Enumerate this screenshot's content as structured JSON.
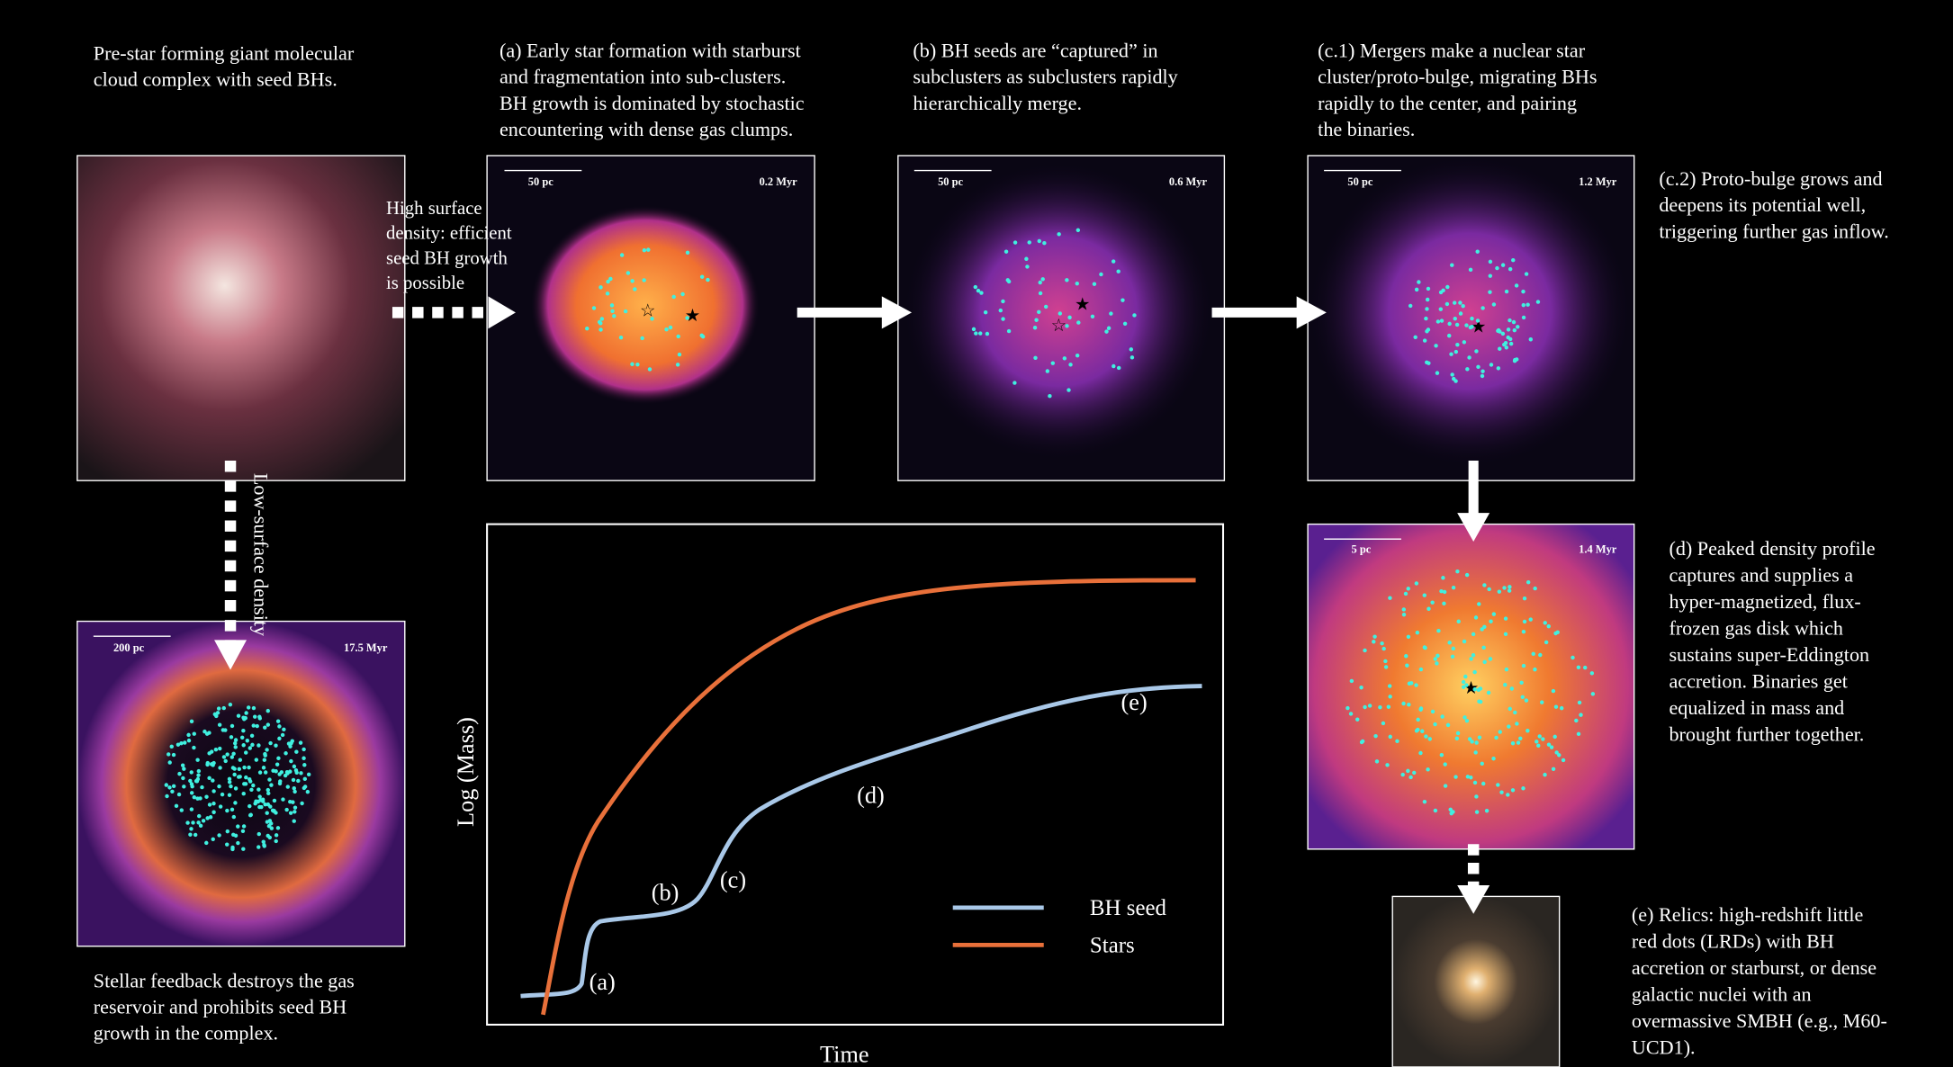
{
  "captions": {
    "initial": [
      "Pre-star forming giant molecular",
      "cloud complex with seed BHs."
    ],
    "a": [
      "(a) Early star formation with starburst",
      "and fragmentation into sub-clusters.",
      "BH growth is dominated by stochastic",
      "encountering with dense gas clumps."
    ],
    "b": [
      "(b) BH seeds are “captured” in",
      "subclusters as subclusters rapidly",
      "hierarchically merge."
    ],
    "c1": [
      "(c.1) Mergers make a nuclear star",
      "cluster/proto-bulge, migrating BHs",
      "rapidly to the center, and pairing",
      "the binaries."
    ],
    "c2": [
      "(c.2) Proto-bulge grows and",
      "deepens its potential well,",
      "triggering further gas inflow."
    ],
    "d": [
      "(d) Peaked density profile",
      "captures and supplies a",
      "hyper-magnetized, flux-",
      "frozen gas disk which",
      "sustains super-Eddington",
      "accretion. Binaries get",
      "equalized in mass and",
      "brought further together."
    ],
    "e": [
      "(e) Relics: high-redshift little",
      "red dots (LRDs) with BH",
      "accretion or starburst, or dense",
      "galactic nuclei with an",
      "overmassive SMBH (e.g., M60-",
      "UCD1)."
    ],
    "feedback": [
      "Stellar feedback destroys the gas",
      "reservoir and prohibits seed BH",
      "growth in the complex."
    ]
  },
  "arrow_labels": {
    "high": [
      "High surface",
      "density: efficient",
      "seed BH growth",
      "is possible"
    ],
    "low": "Low-surface density"
  },
  "panels": {
    "a": {
      "scale": "50 pc",
      "time": "0.2 Myr"
    },
    "b": {
      "scale": "50 pc",
      "time": "0.6 Myr"
    },
    "c1": {
      "scale": "50 pc",
      "time": "1.2 Myr"
    },
    "d": {
      "scale": "5 pc",
      "time": "1.4 Myr"
    },
    "feedback": {
      "scale": "200 pc",
      "time": "17.5 Myr"
    }
  },
  "plot": {
    "y_label": "Log (Mass)",
    "x_label": "Time",
    "series": [
      {
        "name": "BH seed",
        "color": "#a9c8e8"
      },
      {
        "name": "Stars",
        "color": "#e8703a"
      }
    ],
    "annotations": [
      "(a)",
      "(b)",
      "(c)",
      "(d)",
      "(e)"
    ]
  }
}
